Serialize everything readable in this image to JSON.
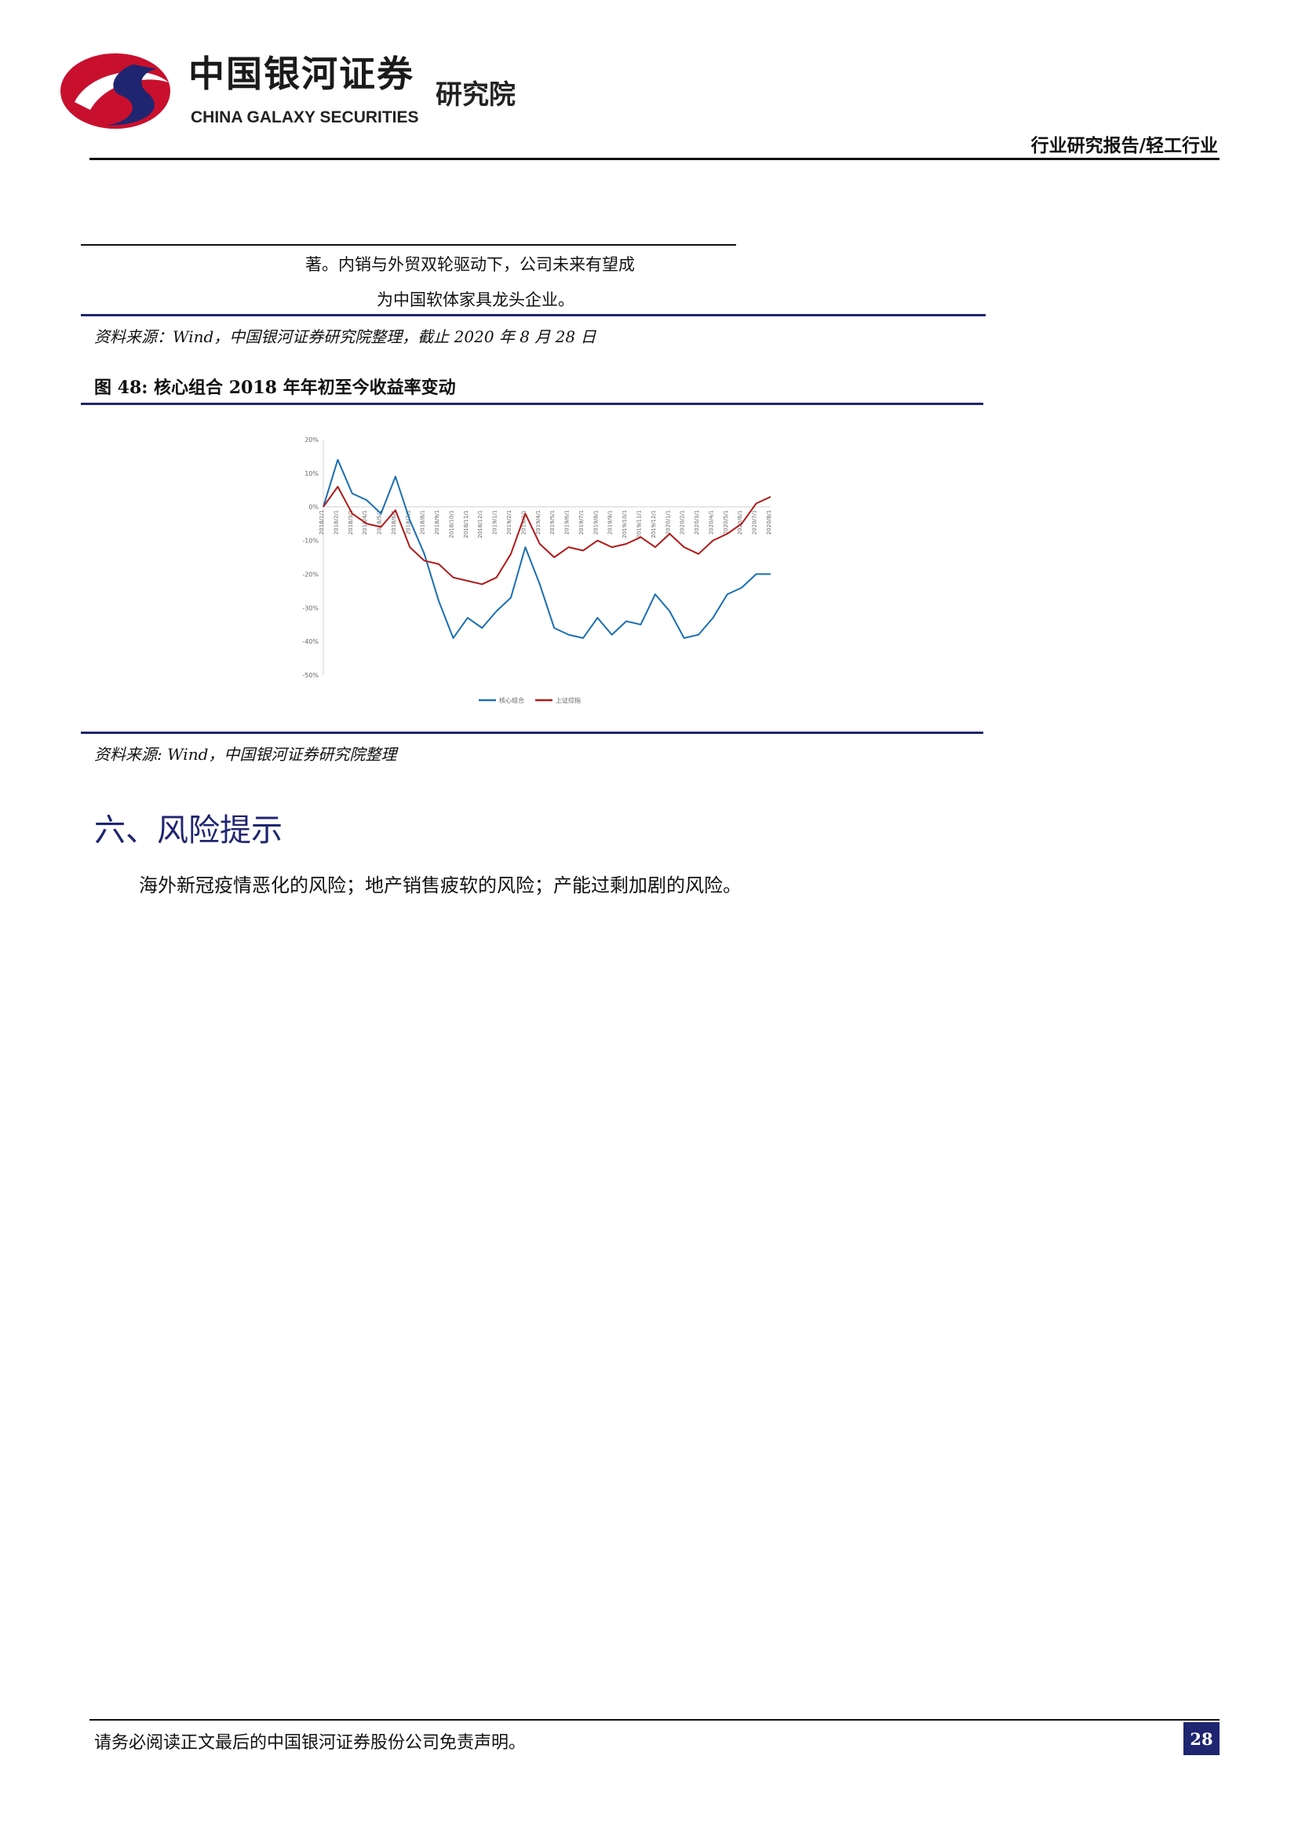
{
  "header": {
    "logo_cn": "中国银河证券",
    "logo_en": "CHINA GALAXY SECURITIES",
    "logo_institute": "研究院",
    "category": "行业研究报告/轻工行业",
    "colors": {
      "logo_red": "#c8102e",
      "logo_navy": "#1f2570"
    }
  },
  "table_fragment": {
    "line1": "著。内销与外贸双轮驱动下，公司未来有望成",
    "line2": "为中国软体家具龙头企业。",
    "source": "资料来源：Wind，中国银河证券研究院整理，截止 2020 年 8 月 28 日"
  },
  "figure": {
    "title": "图 48:  核心组合 2018 年年初至今收益率变动",
    "source": "资料来源: Wind，中国银河证券研究院整理"
  },
  "chart_data": {
    "type": "line",
    "x": [
      "2018/1/1",
      "2018/2/1",
      "2018/3/1",
      "2018/4/1",
      "2018/5/1",
      "2018/6/1",
      "2018/7/1",
      "2018/8/1",
      "2018/9/1",
      "2018/10/1",
      "2018/11/1",
      "2018/12/1",
      "2019/1/1",
      "2019/2/1",
      "2019/3/1",
      "2019/4/1",
      "2019/5/1",
      "2019/6/1",
      "2019/7/1",
      "2019/8/1",
      "2019/9/1",
      "2019/10/1",
      "2019/11/1",
      "2019/12/1",
      "2020/1/1",
      "2020/2/1",
      "2020/3/1",
      "2020/4/1",
      "2020/5/1",
      "2020/6/1",
      "2020/7/1",
      "2020/8/1"
    ],
    "ylim": [
      -50,
      20
    ],
    "yticks": [
      "20%",
      "10%",
      "0%",
      "-10%",
      "-20%",
      "-30%",
      "-40%",
      "-50%"
    ],
    "series": [
      {
        "name": "核心组合",
        "color": "#1a6fb0",
        "values": [
          0,
          14,
          4,
          2,
          -2,
          9,
          -4,
          -14,
          -28,
          -39,
          -33,
          -36,
          -31,
          -27,
          -12,
          -23,
          -36,
          -38,
          -39,
          -33,
          -38,
          -34,
          -35,
          -26,
          -31,
          -39,
          -38,
          -33,
          -26,
          -24,
          -20,
          -20
        ]
      },
      {
        "name": "上证综指",
        "color": "#b01a1a",
        "values": [
          0,
          6,
          -2,
          -5,
          -6,
          -1,
          -12,
          -16,
          -17,
          -21,
          -22,
          -23,
          -21,
          -14,
          -2,
          -11,
          -15,
          -12,
          -13,
          -10,
          -12,
          -11,
          -9,
          -12,
          -8,
          -12,
          -14,
          -10,
          -8,
          -5,
          1,
          3
        ]
      }
    ],
    "legend": "bottom",
    "grid": false
  },
  "section": {
    "title": "六、风险提示",
    "body": "海外新冠疫情恶化的风险；地产销售疲软的风险；产能过剩加剧的风险。"
  },
  "footer": {
    "disclaimer": "请务必阅读正文最后的中国银河证券股份公司免责声明。",
    "page_number": "28"
  }
}
